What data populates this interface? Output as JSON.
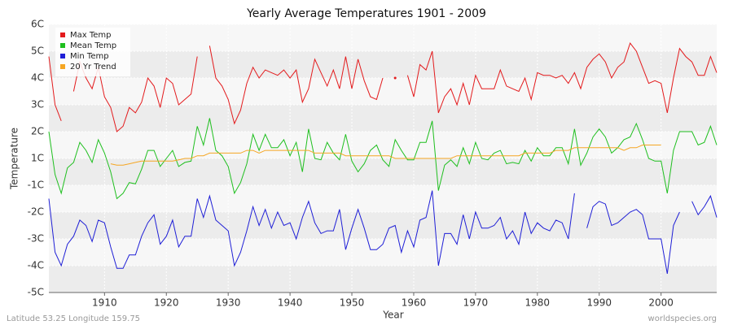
{
  "chart_data": {
    "type": "line",
    "title": "Yearly Average Temperatures 1901 - 2009",
    "xlabel": "Year",
    "ylabel": "Temperature",
    "footer_left": "Latitude 53.25 Longitude 159.75",
    "footer_right": "worldspecies.org",
    "legend": "top-left",
    "grid": true,
    "xlim": [
      1901,
      2009
    ],
    "xticks": [
      1910,
      1920,
      1930,
      1940,
      1950,
      1960,
      1970,
      1980,
      1990,
      2000
    ],
    "ylim": [
      -5,
      6
    ],
    "yticks": [
      {
        "value": 6,
        "label": "6C"
      },
      {
        "value": 5,
        "label": "5C"
      },
      {
        "value": 4,
        "label": "4C"
      },
      {
        "value": 3,
        "label": "3C"
      },
      {
        "value": 2,
        "label": "2C"
      },
      {
        "value": 1,
        "label": "1C"
      },
      {
        "value": -1,
        "label": "-1C"
      },
      {
        "value": -2,
        "label": "-2C"
      },
      {
        "value": -3,
        "label": "-3C"
      },
      {
        "value": -4,
        "label": "-4C"
      },
      {
        "value": -5,
        "label": "-5C"
      }
    ],
    "x": [
      1901,
      1902,
      1903,
      1904,
      1905,
      1906,
      1907,
      1908,
      1909,
      1910,
      1911,
      1912,
      1913,
      1914,
      1915,
      1916,
      1917,
      1918,
      1919,
      1920,
      1921,
      1922,
      1923,
      1924,
      1925,
      1926,
      1927,
      1928,
      1929,
      1930,
      1931,
      1932,
      1933,
      1934,
      1935,
      1936,
      1937,
      1938,
      1939,
      1940,
      1941,
      1942,
      1943,
      1944,
      1945,
      1946,
      1947,
      1948,
      1949,
      1950,
      1951,
      1952,
      1953,
      1954,
      1955,
      1956,
      1957,
      1958,
      1959,
      1960,
      1961,
      1962,
      1963,
      1964,
      1965,
      1966,
      1967,
      1968,
      1969,
      1970,
      1971,
      1972,
      1973,
      1974,
      1975,
      1976,
      1977,
      1978,
      1979,
      1980,
      1981,
      1982,
      1983,
      1984,
      1985,
      1986,
      1987,
      1988,
      1989,
      1990,
      1991,
      1992,
      1993,
      1994,
      1995,
      1996,
      1997,
      1998,
      1999,
      2000,
      2001,
      2002,
      2003,
      2004,
      2005,
      2006,
      2007,
      2008,
      2009
    ],
    "series": [
      {
        "name": "Max Temp",
        "color": "#e31a1c",
        "values": [
          4.8,
          3.0,
          2.4,
          null,
          3.5,
          4.6,
          4.0,
          3.6,
          4.4,
          3.3,
          2.9,
          2.0,
          2.2,
          2.9,
          2.7,
          3.1,
          4.0,
          3.7,
          2.9,
          4.0,
          3.8,
          3.0,
          3.2,
          3.4,
          4.8,
          null,
          5.2,
          4.0,
          3.7,
          3.2,
          2.3,
          2.8,
          3.8,
          4.4,
          4.0,
          4.3,
          4.2,
          4.1,
          4.3,
          4.0,
          4.3,
          3.1,
          3.6,
          4.7,
          4.2,
          3.7,
          4.3,
          3.6,
          4.8,
          3.6,
          4.7,
          3.9,
          3.3,
          3.2,
          4.0,
          null,
          4.0,
          null,
          4.1,
          3.3,
          4.5,
          4.3,
          5.0,
          2.7,
          3.3,
          3.6,
          3.0,
          3.8,
          3.0,
          4.1,
          3.6,
          3.6,
          3.6,
          4.3,
          3.7,
          3.6,
          3.5,
          4.0,
          3.2,
          4.2,
          4.1,
          4.1,
          4.0,
          4.1,
          3.8,
          4.2,
          3.6,
          4.4,
          4.7,
          4.9,
          4.6,
          4.0,
          4.4,
          4.6,
          5.3,
          5.0,
          4.4,
          3.8,
          3.9,
          3.8,
          2.7,
          4.0,
          5.1,
          4.8,
          4.6,
          4.1,
          4.1,
          4.8,
          4.2
        ]
      },
      {
        "name": "Mean Temp",
        "color": "#1fbf1f",
        "values": [
          2.0,
          -0.2,
          -1.3,
          0.3,
          0.7,
          1.6,
          1.3,
          0.7,
          1.7,
          1.2,
          0.0,
          -1.5,
          -1.3,
          -0.8,
          -0.9,
          0.2,
          1.3,
          1.3,
          0.4,
          1.0,
          1.3,
          0.4,
          0.7,
          0.8,
          2.2,
          1.5,
          2.5,
          1.3,
          1.1,
          0.4,
          -1.3,
          -0.8,
          0.6,
          1.9,
          1.3,
          1.9,
          1.4,
          1.4,
          1.7,
          1.1,
          1.6,
          0.0,
          2.1,
          1.0,
          0.9,
          1.6,
          1.2,
          0.9,
          1.9,
          0.8,
          0.0,
          0.6,
          1.3,
          1.5,
          0.9,
          0.4,
          1.7,
          1.3,
          0.9,
          0.9,
          1.6,
          1.6,
          2.4,
          -1.2,
          0.5,
          0.9,
          0.4,
          1.4,
          0.6,
          1.6,
          1.0,
          0.9,
          1.2,
          1.3,
          0.6,
          0.7,
          0.6,
          1.3,
          0.8,
          1.4,
          1.1,
          1.1,
          1.4,
          1.4,
          0.6,
          2.1,
          0.5,
          1.2,
          1.8,
          2.1,
          1.8,
          1.2,
          1.4,
          1.7,
          1.8,
          2.3,
          1.7,
          1.0,
          0.8,
          0.8,
          -1.3,
          1.3,
          2.0,
          2.0,
          2.0,
          1.5,
          1.6,
          2.2,
          1.5
        ]
      },
      {
        "name": "Min Temp",
        "color": "#1f1fd6",
        "values": [
          -1.5,
          -3.5,
          -4.0,
          -3.2,
          -2.9,
          -2.3,
          -2.5,
          -3.1,
          -2.3,
          -2.4,
          -3.3,
          -4.1,
          -4.1,
          -3.6,
          -3.6,
          -2.9,
          -2.4,
          -2.1,
          -3.2,
          -2.9,
          -2.3,
          -3.3,
          -2.9,
          -2.9,
          -1.5,
          -2.2,
          -1.4,
          -2.3,
          -2.5,
          -2.7,
          -4.0,
          -3.5,
          -2.7,
          -1.8,
          -2.5,
          -1.9,
          -2.6,
          -2.0,
          -2.5,
          -2.4,
          -3.0,
          -2.2,
          -1.6,
          -2.4,
          -2.8,
          -2.7,
          -2.7,
          -1.9,
          -3.4,
          -2.6,
          -1.9,
          -2.6,
          -3.4,
          -3.4,
          -3.2,
          -2.6,
          -2.5,
          -3.5,
          -2.7,
          -3.3,
          -2.3,
          -2.2,
          -1.2,
          -4.0,
          -2.8,
          -2.8,
          -3.2,
          -2.1,
          -3.0,
          -2.0,
          -2.6,
          -2.6,
          -2.5,
          -2.2,
          -3.0,
          -2.7,
          -3.2,
          -2.0,
          -2.8,
          -2.4,
          -2.6,
          -2.7,
          -2.3,
          -2.4,
          -3.0,
          -1.3,
          null,
          -2.6,
          -1.8,
          -1.6,
          -1.7,
          -2.5,
          -2.4,
          -2.2,
          -2.0,
          -1.9,
          -2.1,
          -3.0,
          -3.0,
          -3.0,
          -4.3,
          -2.5,
          -2.0,
          null,
          -1.6,
          -2.1,
          -1.8,
          -1.4,
          -2.2
        ]
      },
      {
        "name": "20 Yr Trend",
        "color": "#f5a623",
        "values": [
          null,
          null,
          null,
          null,
          null,
          null,
          null,
          null,
          null,
          null,
          0.6,
          0.5,
          0.5,
          0.6,
          0.7,
          0.8,
          0.8,
          0.8,
          0.8,
          0.8,
          0.8,
          0.9,
          1.0,
          1.0,
          1.1,
          1.1,
          1.2,
          1.2,
          1.2,
          1.2,
          1.2,
          1.2,
          1.3,
          1.3,
          1.2,
          1.3,
          1.3,
          1.3,
          1.3,
          1.3,
          1.3,
          1.3,
          1.3,
          1.2,
          1.2,
          1.2,
          1.2,
          1.2,
          1.1,
          1.1,
          1.1,
          1.1,
          1.1,
          1.1,
          1.1,
          1.1,
          1.0,
          1.0,
          1.0,
          1.0,
          1.0,
          1.0,
          1.0,
          1.0,
          1.0,
          1.0,
          1.1,
          1.1,
          1.1,
          1.1,
          1.1,
          1.1,
          1.1,
          1.1,
          1.1,
          1.1,
          1.1,
          1.2,
          1.2,
          1.2,
          1.2,
          1.2,
          1.3,
          1.3,
          1.3,
          1.4,
          1.4,
          1.4,
          1.4,
          1.4,
          1.4,
          1.4,
          1.4,
          1.3,
          1.4,
          1.4,
          1.5,
          1.5,
          1.5,
          1.5,
          null,
          null,
          null,
          null,
          null,
          null,
          null,
          null,
          null
        ]
      }
    ]
  }
}
